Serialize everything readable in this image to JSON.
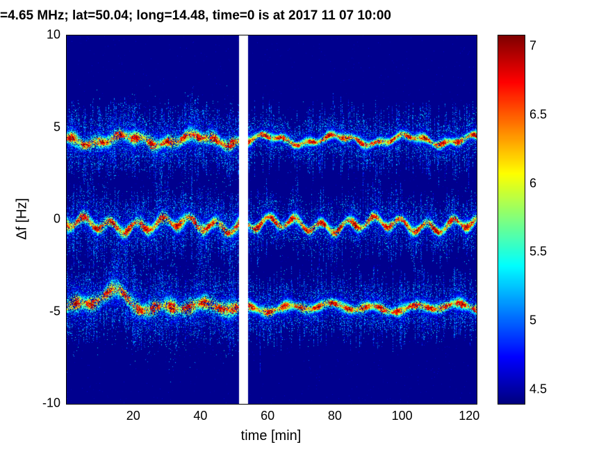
{
  "title": "=4.65 MHz;  lat=50.04; long=14.48, time=0 is at 2017 11 07 10:00",
  "chart_data": {
    "type": "heatmap",
    "subtype": "doppler-shift-spectrogram",
    "title": "=4.65 MHz;  lat=50.04; long=14.48, time=0 is at 2017 11 07 10:00",
    "xlabel": "time [min]",
    "ylabel": "Δf [Hz]",
    "xlim": [
      0,
      122
    ],
    "ylim": [
      -10,
      10
    ],
    "x_ticks": [
      20,
      40,
      60,
      80,
      100,
      120
    ],
    "y_ticks": [
      10,
      5,
      0,
      -5,
      -10
    ],
    "grid": false,
    "legend": false,
    "colormap": "jet",
    "color_axis": [
      4.4,
      7.08
    ],
    "colorbar_ticks": [
      4.5,
      5,
      5.5,
      6,
      6.5,
      7
    ],
    "background_value": 4.44,
    "data_gap_min": [
      51.2,
      53.8
    ],
    "bands": [
      {
        "name": "upper-trace",
        "base_hz": 4.35,
        "wave": [
          [
            0.22,
            0.3,
            2.6
          ],
          [
            0.1,
            0.9,
            0
          ]
        ],
        "sigma_early": 0.36,
        "sigma_late": 0.22,
        "peak_value": 7.1
      },
      {
        "name": "center-trace",
        "base_hz": -0.25,
        "wave": [
          [
            0.28,
            0.8,
            3.8
          ],
          [
            0.18,
            0.21,
            1.0
          ]
        ],
        "sigma_early": 0.33,
        "sigma_late": 0.27,
        "peak_value": 7.15
      },
      {
        "name": "lower-trace",
        "base_hz": -4.75,
        "bump": {
          "amp": 0.95,
          "t_min": 14,
          "width": 28
        },
        "wave": [
          [
            0.15,
            0.5,
            0
          ],
          [
            0.1,
            0.17,
            1.0
          ]
        ],
        "sigma_early": 0.45,
        "sigma_late": 0.27,
        "peak_value": 7.1
      }
    ],
    "artifact_streaks": [
      {
        "t_min": 57.5,
        "f0": -5.0,
        "f1": -8.3
      },
      {
        "t_min": 88.0,
        "f0": 0.1,
        "f1": 3.2
      },
      {
        "t_min": 75.0,
        "f0": -0.4,
        "f1": -2.6
      },
      {
        "t_min": 119.5,
        "f0": 4.2,
        "f1": 1.6
      }
    ]
  }
}
